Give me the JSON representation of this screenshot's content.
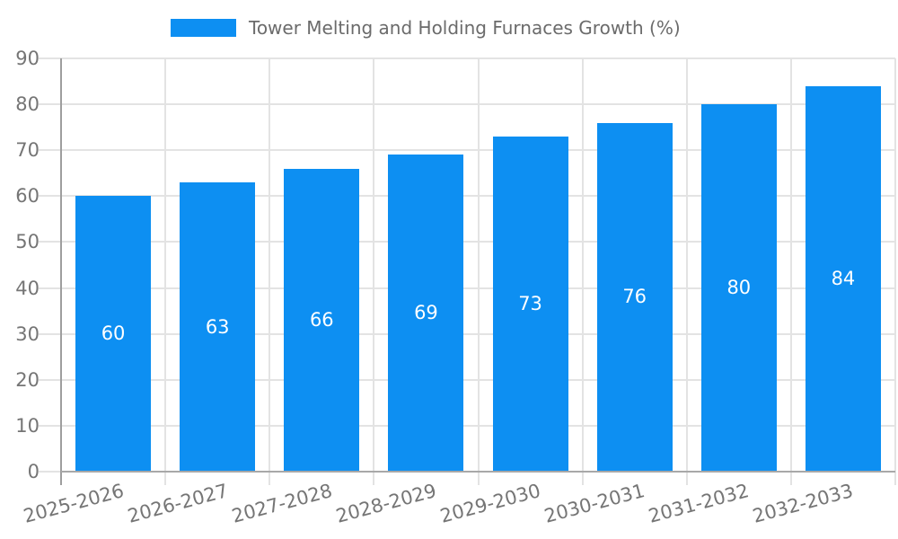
{
  "chart_data": {
    "type": "bar",
    "title": "Tower Melting and Holding Furnaces Growth (%)",
    "categories": [
      "2025-2026",
      "2026-2027",
      "2027-2028",
      "2028-2029",
      "2029-2030",
      "2030-2031",
      "2031-2032",
      "2032-2033"
    ],
    "values": [
      60,
      63,
      66,
      69,
      73,
      76,
      80,
      84
    ],
    "bar_value_labels": [
      "60",
      "63",
      "66",
      "69",
      "73",
      "76",
      "80",
      "84"
    ],
    "xlabel": "",
    "ylabel": "",
    "ylim": [
      0,
      90
    ],
    "ytick_step": 10,
    "y_tick_labels": [
      "0",
      "10",
      "20",
      "30",
      "40",
      "50",
      "60",
      "70",
      "80",
      "90"
    ],
    "grid": true,
    "legend_position": "top",
    "colors": {
      "bar": "#0d8ff2",
      "bar_value_text": "#ffffff",
      "axis_text": "#757575",
      "title_text": "#6b6b6b",
      "gridline": "#e3e3e3",
      "axis_line": "#9e9e9e",
      "baseline": "#a8a8a8",
      "background": "#ffffff"
    }
  }
}
